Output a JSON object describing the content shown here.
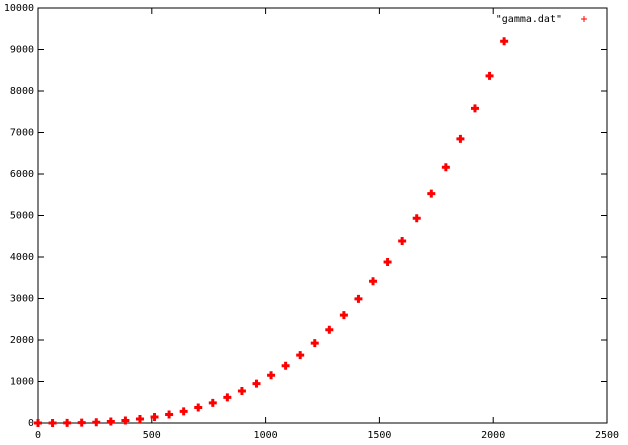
{
  "chart_data": {
    "type": "scatter",
    "x": [
      0,
      64,
      128,
      192,
      256,
      320,
      384,
      448,
      512,
      576,
      640,
      704,
      768,
      832,
      896,
      960,
      1024,
      1088,
      1152,
      1216,
      1280,
      1344,
      1408,
      1472,
      1536,
      1600,
      1664,
      1728,
      1792,
      1856,
      1920,
      1984,
      2048
    ],
    "series": [
      {
        "name": "\"gamma.dat\"",
        "color": "#ff0000",
        "values": [
          0,
          0.28,
          2.2,
          7.6,
          18,
          35,
          61,
          96,
          144,
          205,
          281,
          374,
          485,
          617,
          770,
          948,
          1150,
          1379,
          1637,
          1926,
          2246,
          2600,
          2990,
          3416,
          3881,
          4387,
          4935,
          5527,
          6163,
          6847,
          7581,
          8364,
          9200
        ]
      }
    ],
    "xlim": [
      0,
      2500
    ],
    "ylim": [
      0,
      10000
    ],
    "xticks": [
      0,
      500,
      1000,
      1500,
      2000,
      2500
    ],
    "yticks": [
      0,
      1000,
      2000,
      3000,
      4000,
      5000,
      6000,
      7000,
      8000,
      9000,
      10000
    ],
    "legend": "top-right"
  }
}
